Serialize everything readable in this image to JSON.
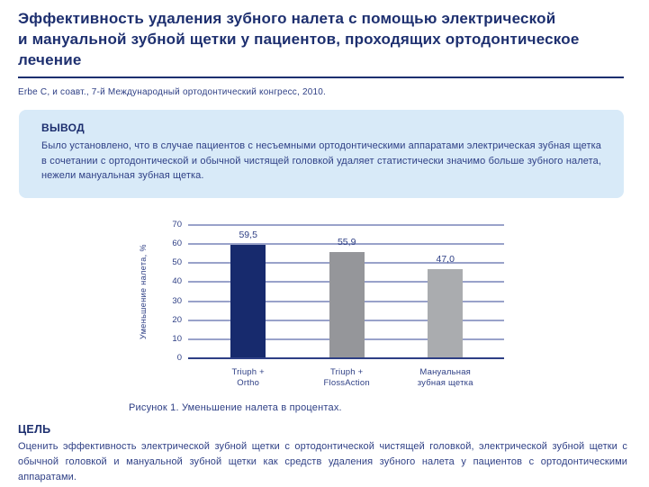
{
  "document": {
    "title_lines": [
      "Эффективность удаления зубного налета с помощью электрической",
      "и мануальной зубной щетки у пациентов, проходящих ортодонтическое",
      "лечение"
    ],
    "citation": "Erbe C, и соавт., 7-й Международный ортодонтический конгресс, 2010."
  },
  "conclusion": {
    "heading": "ВЫВОД",
    "text": "Было установлено, что в случае пациентов с несъемными ортодонтическими аппаратами электрическая зубная щетка в сочетании с ортодонтической и обычной чистящей головкой удаляет статистически значимо больше зубного налета, нежели мануальная зубная щетка."
  },
  "figure": {
    "caption": "Рисунок 1. Уменьшение налета в процентах."
  },
  "goal": {
    "heading": "ЦЕЛЬ",
    "text": "Оценить эффективность электрической зубной щетки с ортодонтической чистящей головкой, электрической зубной щетки с обычной головкой и мануальной зубной щетки как средств удаления зубного налета у пациентов с ортодонтическими аппаратами."
  },
  "colors": {
    "heading_navy": "#1d2f6f",
    "body_navy": "#2e3f85",
    "box_background": "#d8eaf8",
    "gridline": "#99a2ca",
    "axis_line": "#2e3f85"
  },
  "chart_data": {
    "type": "bar",
    "title": "",
    "xlabel": "",
    "ylabel": "Уменьшение налета, %",
    "ylim": [
      0,
      70
    ],
    "ytick_interval": 10,
    "yticks": [
      0,
      10,
      20,
      30,
      40,
      50,
      60,
      70
    ],
    "grid": true,
    "legend_position": "none",
    "categories": [
      "Triuph +\nOrtho",
      "Triuph +\nFlossAction",
      "Мануальная\nзубная щетка"
    ],
    "values": [
      59.5,
      55.9,
      47.0
    ],
    "value_labels": [
      "59,5",
      "55,9",
      "47,0"
    ],
    "bar_colors": [
      "#172a6d",
      "#95969a",
      "#aaacaf"
    ]
  }
}
